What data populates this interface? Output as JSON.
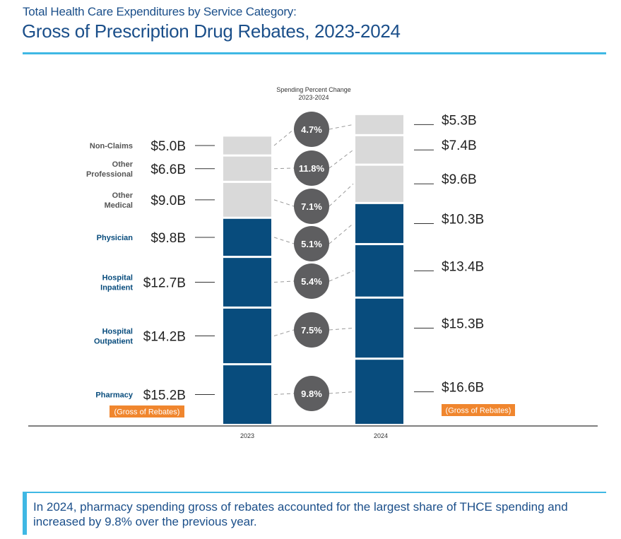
{
  "header": {
    "subtitle": "Total Health Care Expenditures by Service Category:",
    "title": "Gross of Prescription Drug Rebates, 2023-2024"
  },
  "callout": {
    "text": "In 2024, pharmacy spending gross of rebates accounted for the largest share of THCE spending and increased by 9.8% over the previous year."
  },
  "colors": {
    "title": "#1b4f8a",
    "accent_rule": "#3fb8e4",
    "claims_bar": "#084c7d",
    "nonclaims_bar": "#d9d9d9",
    "bubble": "#5e5e60",
    "badge": "#f0862e",
    "connector": "#9a9a9a"
  },
  "chart_data": {
    "type": "bar",
    "stacked": true,
    "unit": "$B",
    "categories": [
      "2023",
      "2024"
    ],
    "pct_change_header": [
      "Spending Percent Change",
      "2023-2024"
    ],
    "pharmacy_note": "(Gross of Rebates)",
    "series": [
      {
        "name": "Pharmacy",
        "label_lines": [
          "Pharmacy"
        ],
        "kind": "claims",
        "values": [
          15.2,
          16.6
        ],
        "value_labels": [
          "$15.2B",
          "$16.6B"
        ],
        "pct_change": "9.8%"
      },
      {
        "name": "Hospital Outpatient",
        "label_lines": [
          "Hospital",
          "Outpatient"
        ],
        "kind": "claims",
        "values": [
          14.2,
          15.3
        ],
        "value_labels": [
          "$14.2B",
          "$15.3B"
        ],
        "pct_change": "7.5%"
      },
      {
        "name": "Hospital Inpatient",
        "label_lines": [
          "Hospital",
          "Inpatient"
        ],
        "kind": "claims",
        "values": [
          12.7,
          13.4
        ],
        "value_labels": [
          "$12.7B",
          "$13.4B"
        ],
        "pct_change": "5.4%"
      },
      {
        "name": "Physician",
        "label_lines": [
          "Physician"
        ],
        "kind": "claims",
        "values": [
          9.8,
          10.3
        ],
        "value_labels": [
          "$9.8B",
          "$10.3B"
        ],
        "pct_change": "5.1%"
      },
      {
        "name": "Other Medical",
        "label_lines": [
          "Other",
          "Medical"
        ],
        "kind": "nonclaims",
        "values": [
          9.0,
          9.6
        ],
        "value_labels": [
          "$9.0B",
          "$9.6B"
        ],
        "pct_change": "7.1%"
      },
      {
        "name": "Other Professional",
        "label_lines": [
          "Other",
          "Professional"
        ],
        "kind": "nonclaims",
        "values": [
          6.6,
          7.4
        ],
        "value_labels": [
          "$6.6B",
          "$7.4B"
        ],
        "pct_change": "11.8%"
      },
      {
        "name": "Non-Claims",
        "label_lines": [
          "Non-Claims"
        ],
        "kind": "nonclaims",
        "values": [
          5.0,
          5.3
        ],
        "value_labels": [
          "$5.0B",
          "$5.3B"
        ],
        "pct_change": "4.7%"
      }
    ]
  }
}
